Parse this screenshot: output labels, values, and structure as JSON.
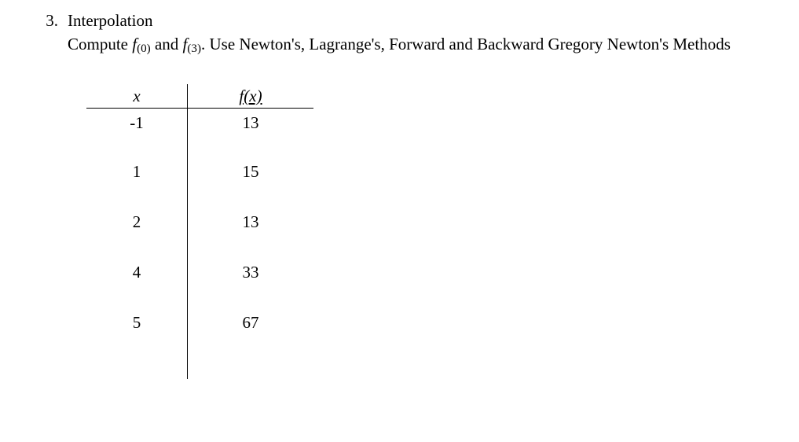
{
  "question": {
    "number": "3.",
    "title": "Interpolation",
    "prompt_pre": "Compute ",
    "f0_f": "f",
    "f0_sub": "(0)",
    "prompt_and": " and ",
    "f3_f": "f",
    "f3_sub": "(3)",
    "prompt_post": ". Use Newton's, Lagrange's, Forward and Backward Gregory Newton's  Methods"
  },
  "table": {
    "header_x": "x",
    "header_fx": "f(x)",
    "rows": [
      {
        "x": "-1",
        "fx": "13"
      },
      {
        "x": "1",
        "fx": "15"
      },
      {
        "x": "2",
        "fx": "13"
      },
      {
        "x": "4",
        "fx": "33"
      },
      {
        "x": "5",
        "fx": "67"
      }
    ]
  }
}
